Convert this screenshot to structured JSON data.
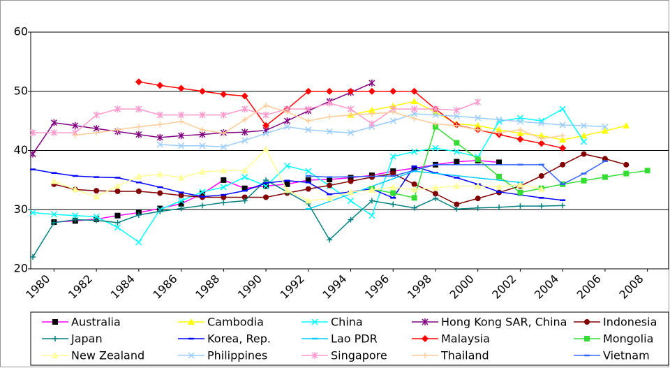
{
  "chart_data": {
    "type": "line",
    "xlim": [
      1978.9,
      2009.0
    ],
    "ylim": [
      20,
      60
    ],
    "xticks": [
      1980,
      1982,
      1984,
      1986,
      1988,
      1990,
      1992,
      1994,
      1996,
      1998,
      2000,
      2002,
      2004,
      2006,
      2008
    ],
    "yticks": [
      20,
      30,
      40,
      50,
      60
    ],
    "grid": true,
    "series": [
      {
        "name": "Australia",
        "color": "#ff00ff",
        "marker": "square",
        "marker_color": "#000000",
        "x": [
          1980,
          1981,
          1982,
          1983,
          1984,
          1985,
          1986,
          1987,
          1988,
          1989,
          1990,
          1991,
          1992,
          1993,
          1994,
          1995,
          1996,
          1997,
          1998,
          1999,
          2000,
          2001
        ],
        "values": [
          27.9,
          28.1,
          28.4,
          29.0,
          29.5,
          30.2,
          31.0,
          32.7,
          35.0,
          33.6,
          34.0,
          34.3,
          35.0,
          35.1,
          35.4,
          35.8,
          36.5,
          37.0,
          37.6,
          38.1,
          38.3,
          38.0
        ]
      },
      {
        "name": "Cambodia",
        "color": "#ffff00",
        "marker": "triangle",
        "x": [
          1994,
          1995,
          1996,
          1997,
          1998,
          1999,
          2000,
          2001,
          2002,
          2003,
          2004,
          2005,
          2006,
          2007
        ],
        "values": [
          46.0,
          46.8,
          47.5,
          48.3,
          46.5,
          44.5,
          44.2,
          43.5,
          42.9,
          42.5,
          41.8,
          42.5,
          43.3,
          44.2
        ]
      },
      {
        "name": "China",
        "color": "#00ffff",
        "marker": "cross",
        "x": [
          1979,
          1980,
          1981,
          1982,
          1983,
          1984,
          1985,
          1986,
          1987,
          1988,
          1989,
          1990,
          1991,
          1992,
          1993,
          1994,
          1995,
          1996,
          1997,
          1998,
          1999,
          2000,
          2001,
          2002,
          2003,
          2004,
          2005
        ],
        "values": [
          29.5,
          29.2,
          29.0,
          28.8,
          27.0,
          24.5,
          30.0,
          31.5,
          33.0,
          33.8,
          35.5,
          34.0,
          37.4,
          36.5,
          34.0,
          31.5,
          29.0,
          39.0,
          39.8,
          40.4,
          39.8,
          38.9,
          44.9,
          45.5,
          45.0,
          47.0,
          41.5
        ]
      },
      {
        "name": "Hong Kong SAR, China",
        "color": "#800080",
        "marker": "star",
        "x": [
          1979,
          1980,
          1981,
          1982,
          1983,
          1984,
          1985,
          1986,
          1987,
          1988,
          1989,
          1990,
          1991,
          1992,
          1993,
          1994,
          1995
        ],
        "values": [
          39.4,
          44.7,
          44.2,
          43.7,
          43.2,
          42.7,
          42.2,
          42.5,
          42.7,
          43.0,
          43.1,
          43.4,
          45.0,
          46.7,
          48.3,
          49.8,
          51.4
        ]
      },
      {
        "name": "Indonesia",
        "color": "#800000",
        "marker": "circle",
        "x": [
          1980,
          1981,
          1982,
          1983,
          1984,
          1985,
          1986,
          1987,
          1988,
          1989,
          1990,
          1991,
          1992,
          1993,
          1994,
          1995,
          1996,
          1997,
          1998,
          1999,
          2000,
          2001,
          2002,
          2003,
          2004,
          2005,
          2006,
          2007
        ],
        "values": [
          34.3,
          33.4,
          33.2,
          33.1,
          33.1,
          32.8,
          32.4,
          32.1,
          32.1,
          32.1,
          32.1,
          32.8,
          33.5,
          34.1,
          34.8,
          35.5,
          36.1,
          34.3,
          32.7,
          30.9,
          31.9,
          32.9,
          34.0,
          35.7,
          37.6,
          39.4,
          38.6,
          37.6
        ]
      },
      {
        "name": "Japan",
        "color": "#008080",
        "marker": "plus",
        "x": [
          1979,
          1980,
          1981,
          1982,
          1983,
          1984,
          1985,
          1986,
          1987,
          1988,
          1989,
          1990,
          1991,
          1992,
          1993,
          1994,
          1995,
          1996,
          1997,
          1998,
          1999,
          2000,
          2001,
          2002,
          2003,
          2004
        ],
        "values": [
          22.0,
          27.8,
          28.3,
          28.2,
          27.8,
          29.1,
          29.7,
          30.2,
          30.7,
          31.2,
          31.5,
          35.0,
          33.0,
          31.0,
          24.9,
          28.3,
          31.5,
          30.9,
          30.3,
          31.9,
          30.1,
          30.3,
          30.4,
          30.6,
          30.6,
          30.7
        ]
      },
      {
        "name": "Korea, Rep.",
        "color": "#0000ff",
        "marker": "dash",
        "x": [
          1979,
          1980,
          1981,
          1982,
          1983,
          1984,
          1985,
          1986,
          1987,
          1988,
          1989,
          1990,
          1991,
          1992,
          1993,
          1994,
          1995,
          1996,
          1997,
          1998,
          1999,
          2000,
          2001,
          2002,
          2003,
          2004
        ],
        "values": [
          36.8,
          36.2,
          35.7,
          35.5,
          35.4,
          34.6,
          33.8,
          32.9,
          32.2,
          32.5,
          33.2,
          34.5,
          34.9,
          34.6,
          32.6,
          33.0,
          33.5,
          32.0,
          37.3,
          36.2,
          35.4,
          34.3,
          33.0,
          32.5,
          32.0,
          31.6
        ]
      },
      {
        "name": "Lao PDR",
        "color": "#00ccff",
        "marker": "dash",
        "x": [
          1992,
          1997,
          2002
        ],
        "values": [
          30.1,
          36.5,
          34.6
        ]
      },
      {
        "name": "Malaysia",
        "color": "#ff0000",
        "marker": "diamond",
        "x": [
          1984,
          1985,
          1986,
          1987,
          1988,
          1989,
          1990,
          1991,
          1992,
          1993,
          1994,
          1995,
          1996,
          1997,
          1998,
          1999,
          2000,
          2001,
          2002,
          2003,
          2004
        ],
        "values": [
          51.6,
          51.0,
          50.5,
          50.0,
          49.5,
          49.2,
          44.2,
          47.0,
          50.0,
          50.0,
          50.0,
          50.0,
          50.0,
          50.0,
          47.0,
          44.3,
          43.5,
          42.7,
          41.9,
          41.2,
          40.4
        ]
      },
      {
        "name": "Mongolia",
        "color": "#33dd33",
        "marker": "square",
        "x": [
          1995,
          1996,
          1997,
          1998,
          1999,
          2000,
          2001,
          2002,
          2003,
          2004,
          2005,
          2006,
          2007,
          2008
        ],
        "values": [
          33.5,
          32.8,
          32.0,
          44.0,
          41.3,
          38.5,
          35.6,
          32.9,
          33.6,
          34.3,
          34.9,
          35.5,
          36.1,
          36.6
        ]
      },
      {
        "name": "New Zealand",
        "color": "#ffff99",
        "marker": "triangle",
        "x": [
          1980,
          1981,
          1982,
          1983,
          1984,
          1985,
          1986,
          1987,
          1988,
          1989,
          1990,
          1991,
          1992,
          1993,
          1994,
          1995,
          1996,
          1997,
          1998,
          1999,
          2000,
          2001,
          2002,
          2003
        ],
        "values": [
          34.8,
          33.4,
          32.2,
          34.0,
          35.6,
          36.0,
          35.4,
          36.4,
          36.6,
          36.6,
          40.2,
          33.3,
          31.5,
          31.9,
          33.0,
          33.3,
          33.8,
          33.4,
          33.7,
          34.0,
          34.0,
          33.9,
          34.2,
          33.5
        ]
      },
      {
        "name": "Philippines",
        "color": "#99ccff",
        "marker": "cross",
        "x": [
          1985,
          1986,
          1987,
          1988,
          1989,
          1990,
          1991,
          1992,
          1993,
          1994,
          1995,
          1996,
          1997,
          1998,
          1999,
          2000,
          2001,
          2002,
          2003,
          2004,
          2005,
          2006
        ],
        "values": [
          41.0,
          40.8,
          40.8,
          40.6,
          41.7,
          42.9,
          44.0,
          43.5,
          43.2,
          43.0,
          44.0,
          45.0,
          46.2,
          46.0,
          45.8,
          45.5,
          45.2,
          44.9,
          44.6,
          44.3,
          44.2,
          44.0
        ]
      },
      {
        "name": "Singapore",
        "color": "#ff99cc",
        "marker": "star",
        "x": [
          1979,
          1980,
          1981,
          1982,
          1983,
          1984,
          1985,
          1986,
          1987,
          1988,
          1989,
          1990,
          1991,
          1992,
          1993,
          1994,
          1995,
          1996,
          1997,
          1998,
          1999,
          2000
        ],
        "values": [
          43.0,
          43.0,
          43.0,
          46.0,
          47.0,
          47.0,
          46.0,
          46.0,
          46.0,
          46.0,
          47.0,
          46.0,
          47.0,
          47.0,
          48.0,
          47.0,
          44.5,
          47.0,
          47.0,
          47.0,
          46.8,
          48.2
        ]
      },
      {
        "name": "Thailand",
        "color": "#ffcc99",
        "marker": "plus",
        "x": [
          1981,
          1982,
          1983,
          1984,
          1985,
          1986,
          1987,
          1988,
          1989,
          1990,
          1991,
          1992,
          1993,
          1994,
          1995,
          1996,
          1997,
          1998,
          1999,
          2000,
          2001,
          2002,
          2003,
          2004
        ],
        "values": [
          42.6,
          43.0,
          43.5,
          44.0,
          44.4,
          44.9,
          43.5,
          42.9,
          45.2,
          47.6,
          46.5,
          45.0,
          45.7,
          46.0,
          46.2,
          46.5,
          45.4,
          44.5,
          44.2,
          43.5,
          43.0,
          43.5,
          42.0,
          42.5
        ]
      },
      {
        "name": "Vietnam",
        "color": "#3366ff",
        "marker": "dash",
        "x": [
          1992,
          1993,
          1996,
          1998,
          2002,
          2003,
          2004,
          2005,
          2006
        ],
        "values": [
          35.7,
          35.5,
          35.7,
          37.6,
          37.6,
          37.6,
          34.3,
          36.1,
          38.2
        ]
      }
    ]
  }
}
